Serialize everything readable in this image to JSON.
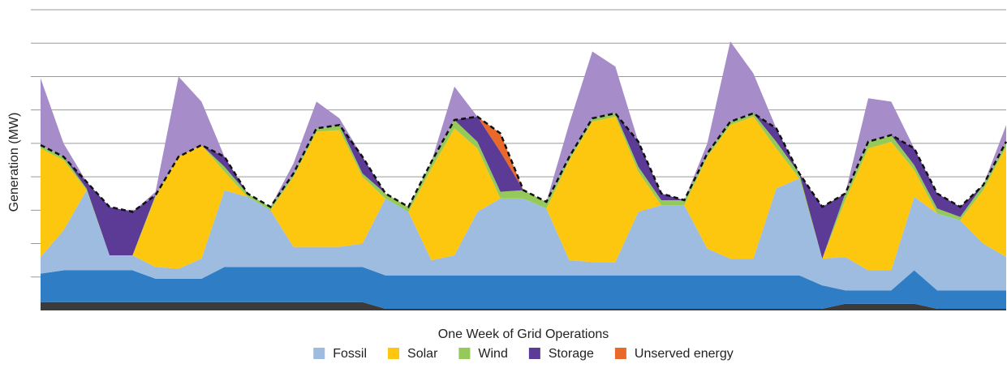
{
  "chart_data": {
    "type": "area",
    "stacked": true,
    "x_label": "One Week of Grid Operations",
    "y_label": "Generation (MW)",
    "ylim": [
      0,
      9
    ],
    "yticks": [
      1,
      2,
      3,
      4,
      5,
      6,
      7,
      8,
      9
    ],
    "grid": true,
    "legend": "bottom",
    "categories": [
      null,
      null,
      null,
      null,
      null,
      null,
      null,
      null,
      null,
      null,
      null,
      null,
      null,
      null,
      null,
      null,
      null,
      null,
      null,
      null,
      null,
      null,
      null,
      null,
      null,
      null,
      null,
      null,
      null,
      null,
      null,
      null,
      null,
      null,
      null,
      null,
      null,
      null,
      null,
      null,
      null,
      null,
      null
    ],
    "series": [
      {
        "color": "#3b3b3b",
        "values": [
          0.25,
          0.25,
          0.25,
          0.25,
          0.25,
          0.25,
          0.25,
          0.25,
          0.25,
          0.25,
          0.25,
          0.25,
          0.25,
          0.25,
          0.25,
          0.05,
          0.05,
          0.05,
          0.05,
          0.05,
          0.05,
          0.05,
          0.05,
          0.05,
          0.05,
          0.05,
          0.05,
          0.05,
          0.05,
          0.05,
          0.05,
          0.05,
          0.05,
          0.05,
          0.05,
          0.2,
          0.2,
          0.2,
          0.2,
          0.05,
          0.05,
          0.05,
          0.05
        ]
      },
      {
        "color": "#2f7dc4",
        "values": [
          0.85,
          0.95,
          0.95,
          0.95,
          0.95,
          0.7,
          0.7,
          0.7,
          1.05,
          1.05,
          1.05,
          1.05,
          1.05,
          1.05,
          1.05,
          1.0,
          1.0,
          1.0,
          1.0,
          1.0,
          1.0,
          1.0,
          1.0,
          1.0,
          1.0,
          1.0,
          1.0,
          1.0,
          1.0,
          1.0,
          1.0,
          1.0,
          1.0,
          1.0,
          0.7,
          0.4,
          0.4,
          0.4,
          1.0,
          0.55,
          0.55,
          0.55,
          0.55
        ]
      },
      {
        "name": "Fossil",
        "color": "#9dbce0",
        "values": [
          0.5,
          1.2,
          2.4,
          0.45,
          0.45,
          0.35,
          0.3,
          0.6,
          2.3,
          2.1,
          1.7,
          0.6,
          0.6,
          0.6,
          0.7,
          2.3,
          1.9,
          0.45,
          0.6,
          1.9,
          2.3,
          2.3,
          2.0,
          0.45,
          0.4,
          0.4,
          1.9,
          2.1,
          2.1,
          0.8,
          0.5,
          0.5,
          2.6,
          2.9,
          0.8,
          1.0,
          0.6,
          0.6,
          2.2,
          2.3,
          2.1,
          1.4,
          1.0
        ]
      },
      {
        "name": "Solar",
        "color": "#fdc70f",
        "values": [
          3.25,
          2.1,
          0,
          0,
          0,
          2.1,
          3.35,
          3.4,
          0.55,
          0,
          0,
          2.1,
          3.45,
          3.5,
          2.0,
          0,
          0,
          2.75,
          3.8,
          1.9,
          0,
          0,
          0,
          3.0,
          4.2,
          4.35,
          1.2,
          0,
          0,
          2.75,
          4.0,
          4.25,
          1.2,
          0,
          0,
          1.7,
          3.65,
          3.85,
          0.8,
          0,
          0,
          1.6,
          3.3
        ]
      },
      {
        "name": "Wind",
        "color": "#95c95a",
        "values": [
          0.1,
          0.1,
          0.05,
          0,
          0,
          0.05,
          0,
          0,
          0.15,
          0.1,
          0.1,
          0.1,
          0.1,
          0.15,
          0.1,
          0.15,
          0.15,
          0.2,
          0.25,
          0.2,
          0.2,
          0.25,
          0.2,
          0.1,
          0.1,
          0.1,
          0.15,
          0.15,
          0.15,
          0.1,
          0.1,
          0.1,
          0.2,
          0.15,
          0,
          0.2,
          0.2,
          0.2,
          0.15,
          0.15,
          0.1,
          0.15,
          0.15
        ]
      },
      {
        "name": "Storage",
        "color": "#5b3b96",
        "values": [
          0,
          0,
          0.2,
          1.45,
          1.3,
          0,
          0,
          0,
          0.3,
          0,
          0,
          0,
          0,
          0,
          0.5,
          0,
          0,
          0,
          0,
          0.75,
          1.2,
          0,
          0,
          0,
          0,
          0,
          0.75,
          0.2,
          0,
          0,
          0,
          0,
          0.4,
          0,
          1.55,
          0,
          0,
          0,
          0.5,
          0.45,
          0.3,
          0,
          0
        ]
      },
      {
        "name": "Unserved energy",
        "color": "#e8692a",
        "values": [
          0,
          0,
          0,
          0,
          0,
          0,
          0,
          0,
          0,
          0,
          0,
          0,
          0,
          0,
          0,
          0,
          0,
          0,
          0,
          0,
          0.55,
          0,
          0,
          0,
          0,
          0,
          0,
          0,
          0,
          0,
          0,
          0,
          0,
          0,
          0,
          0,
          0,
          0,
          0,
          0,
          0,
          0,
          0
        ]
      },
      {
        "color": "#a68cc8",
        "values": [
          2.0,
          0.4,
          0,
          0,
          0,
          0.1,
          2.4,
          1.3,
          0,
          0,
          0,
          0.3,
          0.8,
          0.2,
          0,
          0,
          0,
          0,
          1.0,
          0,
          0,
          0,
          0,
          1.0,
          2.0,
          1.4,
          0,
          0,
          0,
          0.3,
          2.4,
          1.2,
          0,
          0,
          0,
          0,
          1.3,
          1.0,
          0,
          0,
          0,
          0,
          0.5
        ]
      }
    ]
  }
}
